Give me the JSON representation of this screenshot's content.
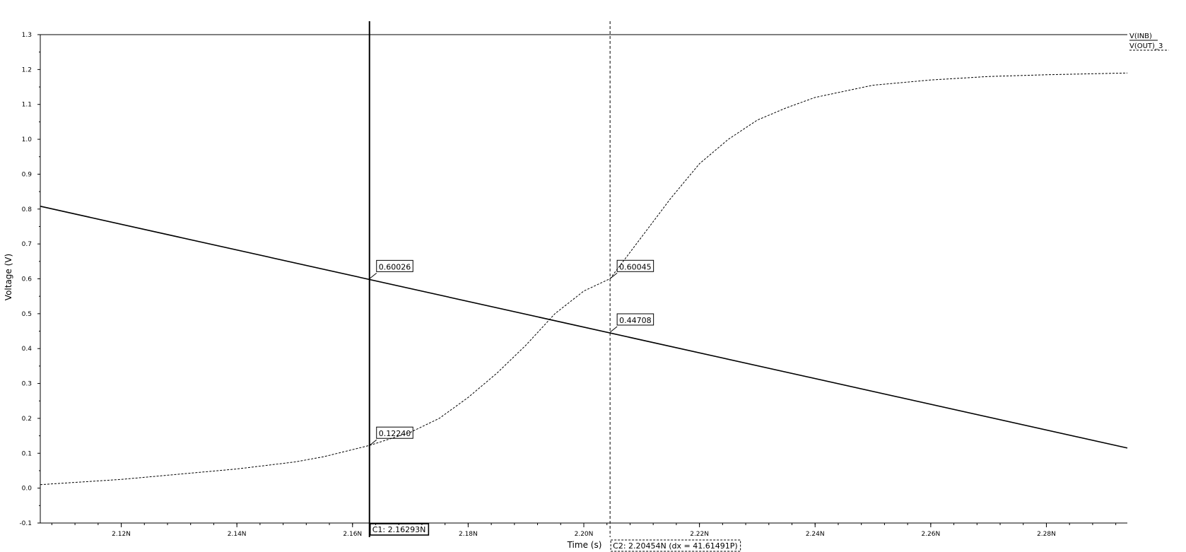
{
  "chart_data": {
    "type": "line",
    "xlabel": "Time (s)",
    "ylabel": "Voltage (V)",
    "xlim": [
      2.106,
      2.294
    ],
    "ylim": [
      -0.1,
      1.3
    ],
    "x_unit": "N",
    "xticks": [
      2.12,
      2.14,
      2.16,
      2.18,
      2.2,
      2.22,
      2.24,
      2.26,
      2.28
    ],
    "xtick_labels": [
      "2.12N",
      "2.14N",
      "2.16N",
      "2.18N",
      "2.20N",
      "2.22N",
      "2.24N",
      "2.26N",
      "2.28N"
    ],
    "yticks": [
      -0.1,
      0.0,
      0.1,
      0.2,
      0.3,
      0.4,
      0.5,
      0.6,
      0.7,
      0.8,
      0.9,
      1.0,
      1.1,
      1.2,
      1.3
    ],
    "ytick_labels": [
      "-0.1",
      "0.0",
      "0.1",
      "0.2",
      "0.3",
      "0.4",
      "0.5",
      "0.6",
      "0.7",
      "0.8",
      "0.9",
      "1.0",
      "1.1",
      "1.2",
      "1.3"
    ],
    "grid": false,
    "legend_position": "top-right",
    "series": [
      {
        "name": "V(INB)",
        "style": "solid",
        "x": [
          2.106,
          2.294
        ],
        "y": [
          0.808,
          0.115
        ]
      },
      {
        "name": "V(OUT)_3",
        "style": "dashed",
        "x": [
          2.106,
          2.12,
          2.13,
          2.14,
          2.15,
          2.155,
          2.16293,
          2.17,
          2.175,
          2.18,
          2.185,
          2.19,
          2.195,
          2.2,
          2.20454,
          2.21,
          2.215,
          2.22,
          2.225,
          2.23,
          2.235,
          2.24,
          2.25,
          2.26,
          2.27,
          2.28,
          2.294
        ],
        "y": [
          0.01,
          0.025,
          0.04,
          0.055,
          0.075,
          0.09,
          0.1224,
          0.16,
          0.2,
          0.26,
          0.33,
          0.41,
          0.5,
          0.565,
          0.60045,
          0.72,
          0.83,
          0.93,
          1.0,
          1.055,
          1.09,
          1.12,
          1.155,
          1.17,
          1.18,
          1.185,
          1.19
        ]
      }
    ],
    "cursors": [
      {
        "id": "C1",
        "x": 2.16293,
        "style": "solid",
        "label": "C1: 2.16293N"
      },
      {
        "id": "C2",
        "x": 2.20454,
        "style": "dashed",
        "label": "C2: 2.20454N (dx = 41.61491P)"
      }
    ],
    "annotations": [
      {
        "x": 2.16293,
        "y": 0.60026,
        "text": "0.60026"
      },
      {
        "x": 2.16293,
        "y": 0.1224,
        "text": "0.12240"
      },
      {
        "x": 2.20454,
        "y": 0.60045,
        "text": "0.60045"
      },
      {
        "x": 2.20454,
        "y": 0.44708,
        "text": "0.44708"
      }
    ]
  }
}
